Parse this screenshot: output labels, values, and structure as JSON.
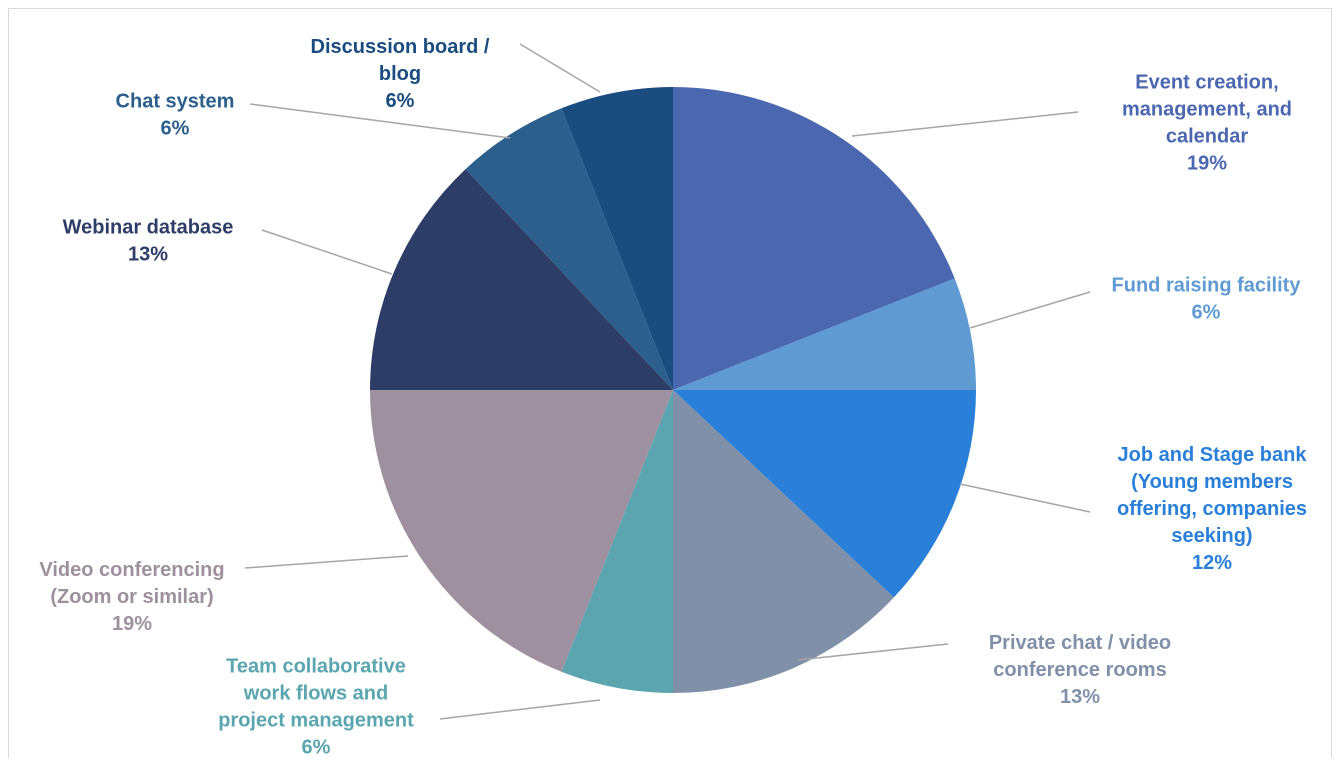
{
  "chart_data": {
    "type": "pie",
    "title": "",
    "start_angle_deg": 0,
    "direction": "clockwise",
    "legend": "none",
    "slices": [
      {
        "label": [
          "Event creation,",
          "management, and",
          "calendar"
        ],
        "percent": "19%",
        "value": 19,
        "color": "#4a67af"
      },
      {
        "label": [
          "Fund raising facility"
        ],
        "percent": "6%",
        "value": 6,
        "color": "#5f9bd2"
      },
      {
        "label": [
          "Job and Stage bank",
          "(Young members",
          "offering, companies",
          "seeking)"
        ],
        "percent": "12%",
        "value": 12,
        "color": "#2a7fd8"
      },
      {
        "label": [
          "Private chat / video",
          "conference rooms"
        ],
        "percent": "13%",
        "value": 13,
        "color": "#8090a8"
      },
      {
        "label": [
          "Team collaborative",
          "work flows and",
          "project management"
        ],
        "percent": "6%",
        "value": 6,
        "color": "#5ba5b0"
      },
      {
        "label": [
          "Video conferencing",
          "(Zoom or similar)"
        ],
        "percent": "19%",
        "value": 19,
        "color": "#9e909f"
      },
      {
        "label": [
          "Webinar database"
        ],
        "percent": "13%",
        "value": 13,
        "color": "#2d3d67"
      },
      {
        "label": [
          "Chat system"
        ],
        "percent": "6%",
        "value": 6,
        "color": "#2c5f8c"
      },
      {
        "label": [
          "Discussion board /",
          "blog"
        ],
        "percent": "6%",
        "value": 6,
        "color": "#1b4c80"
      }
    ]
  }
}
